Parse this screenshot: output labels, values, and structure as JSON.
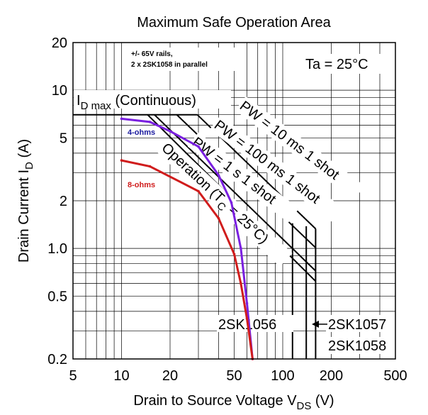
{
  "chart_data": {
    "type": "line",
    "title": "Maximum Safe Operation Area",
    "xlabel": {
      "main": "Drain to Source Voltage  V",
      "sub": "DS",
      "unit": "  (V)"
    },
    "ylabel": {
      "main": "Drain Current  I",
      "sub": "D",
      "unit": "  (A)"
    },
    "x_scale": "log",
    "y_scale": "log",
    "xlim": [
      5,
      500
    ],
    "ylim": [
      0.2,
      20
    ],
    "x_ticks": [
      {
        "value": 5,
        "label": "5"
      },
      {
        "value": 10,
        "label": "10"
      },
      {
        "value": 20,
        "label": "20"
      },
      {
        "value": 50,
        "label": "50"
      },
      {
        "value": 100,
        "label": "100"
      },
      {
        "value": 200,
        "label": "200"
      },
      {
        "value": 500,
        "label": "500"
      }
    ],
    "y_ticks": [
      {
        "value": 0.2,
        "label": "0.2"
      },
      {
        "value": 0.5,
        "label": "0.5"
      },
      {
        "value": 1,
        "label": "1.0"
      },
      {
        "value": 2,
        "label": "2"
      },
      {
        "value": 5,
        "label": "5"
      },
      {
        "value": 10,
        "label": "10"
      },
      {
        "value": 20,
        "label": "20"
      }
    ],
    "grid": true,
    "boundaries": [
      {
        "key": "idmax",
        "points": [
          [
            5,
            7
          ],
          [
            29.5,
            7
          ]
        ]
      },
      {
        "key": "pw10ms",
        "points": [
          [
            29.5,
            7
          ],
          [
            160,
            1.33
          ]
        ]
      },
      {
        "key": "pw100ms",
        "points": [
          [
            22,
            7
          ],
          [
            160,
            1.01
          ]
        ]
      },
      {
        "key": "pw1s",
        "points": [
          [
            16,
            7
          ],
          [
            160,
            0.72
          ]
        ]
      },
      {
        "key": "dc",
        "points": [
          [
            14.5,
            7
          ],
          [
            160,
            0.62
          ]
        ]
      }
    ],
    "limits": [
      {
        "key": "2sk1056",
        "x": 115,
        "ymax": 1.44
      },
      {
        "key": "2sk1057",
        "x": 140,
        "ymax": 1.38
      },
      {
        "key": "2sk1058",
        "x": 160,
        "ymax": 1.33
      }
    ],
    "series": [
      {
        "name": "4-ohms",
        "color": "#7a1fe0",
        "points": [
          [
            10,
            6.6
          ],
          [
            15,
            6.3
          ],
          [
            20,
            5.5
          ],
          [
            30,
            4.4
          ],
          [
            40,
            2.9
          ],
          [
            48,
            1.95
          ],
          [
            55,
            1.0
          ],
          [
            60,
            0.45
          ],
          [
            65,
            0.2
          ]
        ]
      },
      {
        "name": "8-ohms",
        "color": "#d01c1c",
        "points": [
          [
            10,
            3.6
          ],
          [
            15,
            3.3
          ],
          [
            30,
            2.3
          ],
          [
            40,
            1.55
          ],
          [
            50,
            0.92
          ],
          [
            55,
            0.6
          ],
          [
            60,
            0.36
          ],
          [
            65,
            0.2
          ]
        ]
      }
    ],
    "labels": {
      "idmax": {
        "main": "I",
        "sub": "D max",
        "rest": " (Continuous)"
      },
      "pw10ms": "PW = 10 ms  1 shot",
      "pw100ms": "PW = 100 ms  1 shot",
      "pw1s": "PW = 1 s  1 shot",
      "dc": {
        "main": "Operation (T",
        "sub": "C",
        "rest": " = 25°C)"
      },
      "note_line1": "+/- 65V rails,",
      "note_line2": "2 x 2SK1058 in parallel",
      "ta": "Ta = 25°C",
      "part_1056": "2SK1056",
      "part_1057": "2SK1057",
      "part_1058": "2SK1058"
    },
    "colors": {
      "grid": "#000000",
      "boundary": "#000000",
      "series_4ohm_label": "#1a1a9e",
      "series_8ohm_label": "#d01c1c"
    }
  }
}
